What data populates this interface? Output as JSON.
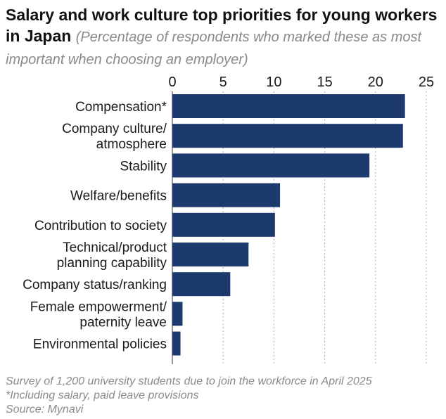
{
  "title": {
    "main": "Salary and work culture top priorities for young workers in Japan",
    "subtitle": "(Percentage of respondents who marked these as most important when choosing an employer)"
  },
  "chart_data": {
    "type": "bar",
    "orientation": "horizontal",
    "categories": [
      [
        "Compensation*"
      ],
      [
        "Company culture/",
        "atmosphere"
      ],
      [
        "Stability"
      ],
      [
        "Welfare/benefits"
      ],
      [
        "Contribution to society"
      ],
      [
        "Technical/product",
        "planning capability"
      ],
      [
        "Company status/ranking"
      ],
      [
        "Female empowerment/",
        "paternity leave"
      ],
      [
        "Environmental policies"
      ]
    ],
    "values": [
      22.9,
      22.7,
      19.4,
      10.6,
      10.1,
      7.5,
      5.7,
      1.0,
      0.8
    ],
    "xlim": [
      0,
      25
    ],
    "ticks": [
      0,
      5,
      10,
      15,
      20,
      25
    ],
    "bar_color": "#1c3a6e",
    "grid_color": "#b0b0b0"
  },
  "footer": {
    "survey_note": "Survey of 1,200 university students due to join the workforce in April 2025",
    "footnote": "*Including salary, paid leave provisions",
    "source": "Source: Mynavi"
  }
}
